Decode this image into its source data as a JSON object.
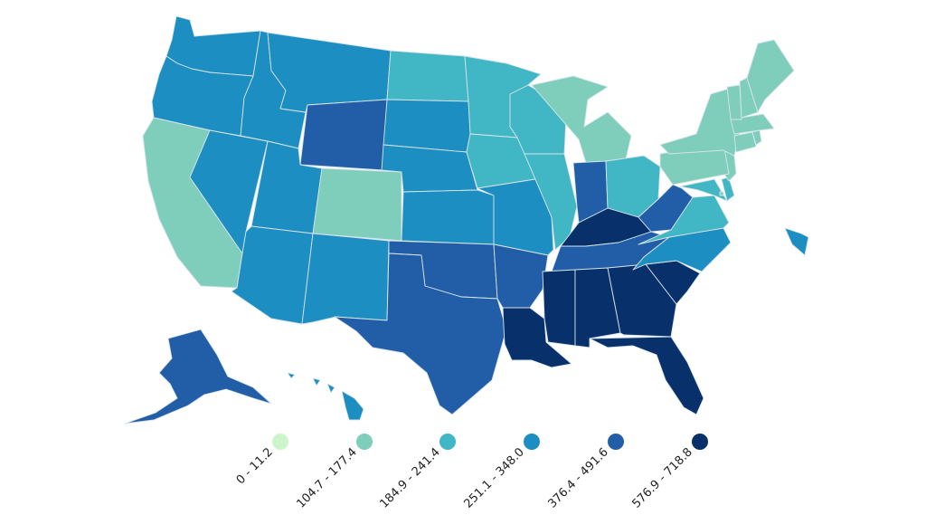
{
  "legend": [
    {
      "label": "0 - 11.2",
      "color": "#ccf5cc"
    },
    {
      "label": "104.7 - 177.4",
      "color": "#7ecebb"
    },
    {
      "label": "184.9 - 241.4",
      "color": "#41b6c4"
    },
    {
      "label": "251.1 - 348.0",
      "color": "#1d8ec1"
    },
    {
      "label": "376.4 - 491.6",
      "color": "#225ea8"
    },
    {
      "label": "576.9 - 718.8",
      "color": "#08306b"
    }
  ],
  "states": [
    {
      "name": "Washington",
      "bin": 3
    },
    {
      "name": "Oregon",
      "bin": 3
    },
    {
      "name": "California",
      "bin": 1
    },
    {
      "name": "Nevada",
      "bin": 3
    },
    {
      "name": "Idaho",
      "bin": 3
    },
    {
      "name": "Montana",
      "bin": 3
    },
    {
      "name": "Wyoming",
      "bin": 4
    },
    {
      "name": "Utah",
      "bin": 3
    },
    {
      "name": "Arizona",
      "bin": 3
    },
    {
      "name": "Colorado",
      "bin": 1
    },
    {
      "name": "New Mexico",
      "bin": 3
    },
    {
      "name": "North Dakota",
      "bin": 2
    },
    {
      "name": "South Dakota",
      "bin": 3
    },
    {
      "name": "Nebraska",
      "bin": 3
    },
    {
      "name": "Kansas",
      "bin": 3
    },
    {
      "name": "Oklahoma",
      "bin": 4
    },
    {
      "name": "Texas",
      "bin": 4
    },
    {
      "name": "Minnesota",
      "bin": 2
    },
    {
      "name": "Iowa",
      "bin": 2
    },
    {
      "name": "Missouri",
      "bin": 3
    },
    {
      "name": "Arkansas",
      "bin": 4
    },
    {
      "name": "Louisiana",
      "bin": 5
    },
    {
      "name": "Wisconsin",
      "bin": 2
    },
    {
      "name": "Illinois",
      "bin": 2
    },
    {
      "name": "Michigan",
      "bin": 1
    },
    {
      "name": "Indiana",
      "bin": 4
    },
    {
      "name": "Ohio",
      "bin": 2
    },
    {
      "name": "Kentucky",
      "bin": 5
    },
    {
      "name": "Tennessee",
      "bin": 4
    },
    {
      "name": "Mississippi",
      "bin": 5
    },
    {
      "name": "Alabama",
      "bin": 5
    },
    {
      "name": "Georgia",
      "bin": 5
    },
    {
      "name": "Florida",
      "bin": 5
    },
    {
      "name": "South Carolina",
      "bin": 5
    },
    {
      "name": "North Carolina",
      "bin": 3
    },
    {
      "name": "Virginia",
      "bin": 2
    },
    {
      "name": "West Virginia",
      "bin": 4
    },
    {
      "name": "Maryland",
      "bin": 2
    },
    {
      "name": "Delaware",
      "bin": 2
    },
    {
      "name": "New Jersey",
      "bin": 1
    },
    {
      "name": "Pennsylvania",
      "bin": 1
    },
    {
      "name": "New York",
      "bin": 1
    },
    {
      "name": "Connecticut",
      "bin": 1
    },
    {
      "name": "Rhode Island",
      "bin": 1
    },
    {
      "name": "Massachusetts",
      "bin": 1
    },
    {
      "name": "Vermont",
      "bin": 1
    },
    {
      "name": "New Hampshire",
      "bin": 1
    },
    {
      "name": "Maine",
      "bin": 1
    },
    {
      "name": "District of Columbia",
      "bin": 1
    },
    {
      "name": "Alaska",
      "bin": 4
    },
    {
      "name": "Hawaii",
      "bin": 3
    }
  ]
}
